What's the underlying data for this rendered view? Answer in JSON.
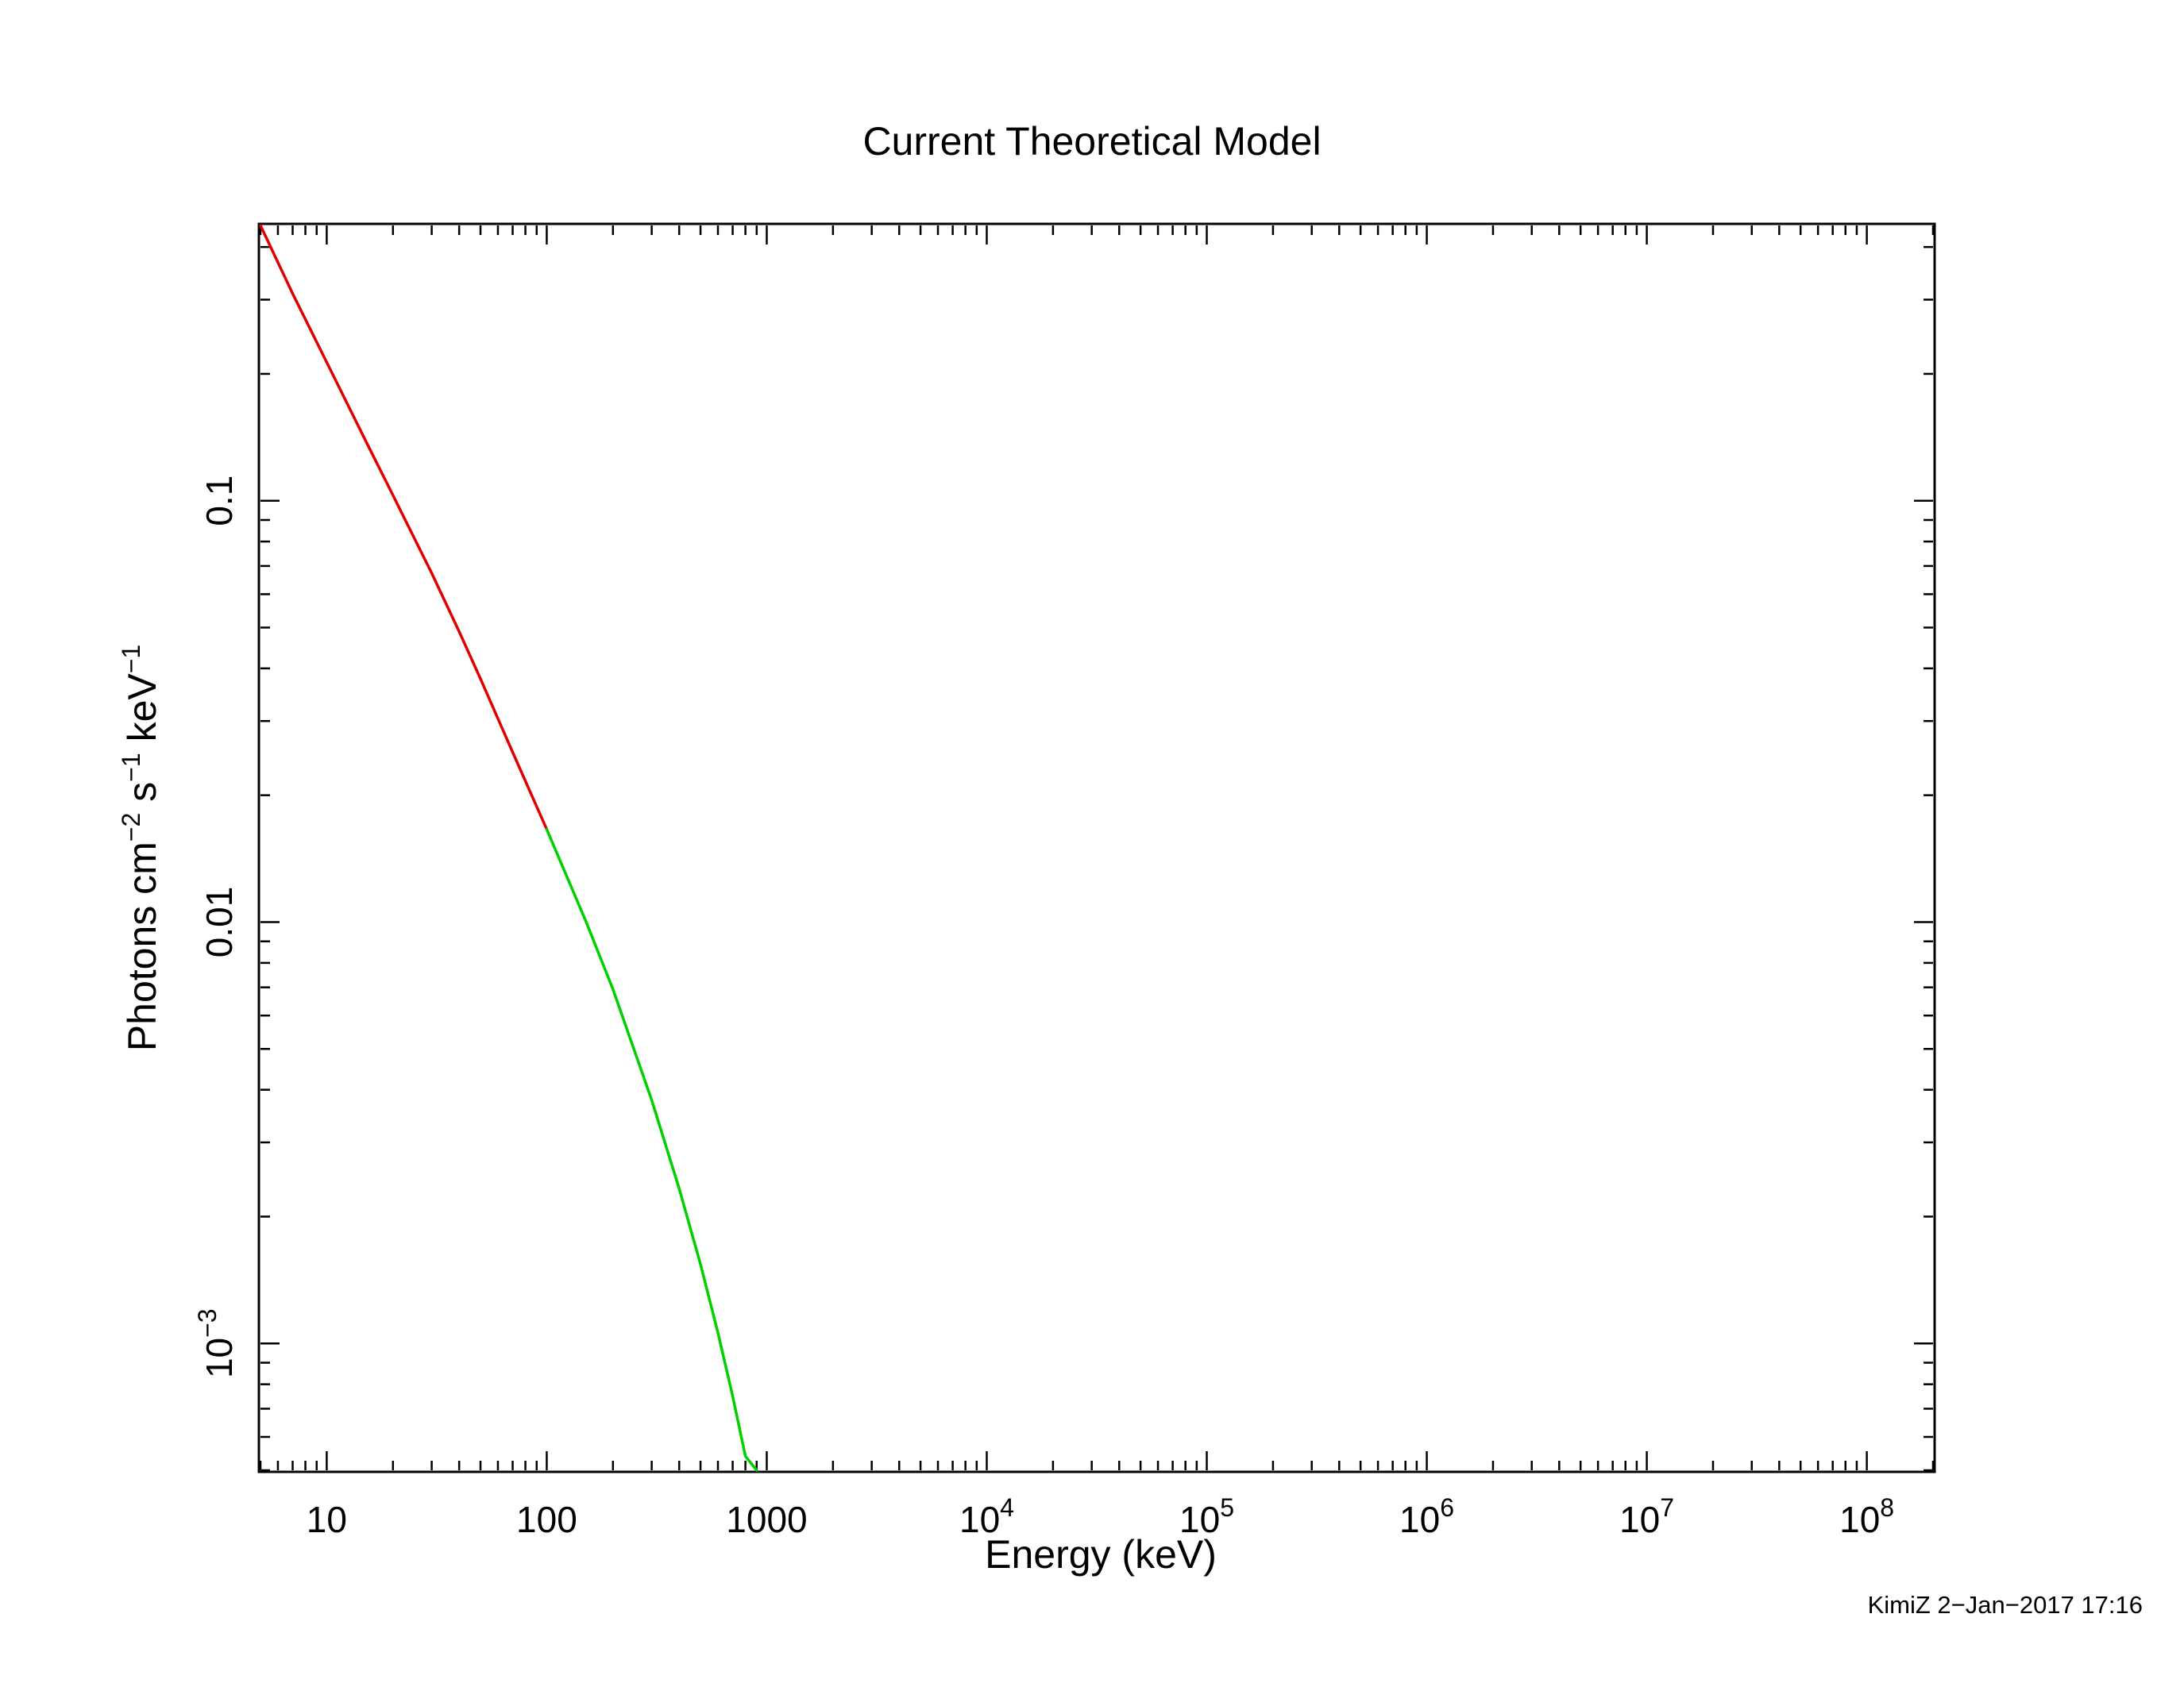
{
  "stamp": "KimiZ  2−Jan−2017 17:16",
  "chart_data": {
    "type": "line",
    "title": "Current Theoretical Model",
    "xlabel": "Energy (keV)",
    "ylabel": {
      "base": "Photons cm",
      "exp1": "−2",
      "mid1": " s",
      "exp2": "−1",
      "mid2": " keV",
      "exp3": "−1"
    },
    "xscale": "log",
    "yscale": "log",
    "xlim": [
      5,
      200000000
    ],
    "ylim": [
      0.0005,
      0.45
    ],
    "grid": false,
    "x_ticks": [
      {
        "value": 10,
        "base": "10",
        "exp": ""
      },
      {
        "value": 100,
        "base": "100",
        "exp": ""
      },
      {
        "value": 1000,
        "base": "1000",
        "exp": ""
      },
      {
        "value": 10000,
        "base": "10",
        "exp": "4"
      },
      {
        "value": 100000,
        "base": "10",
        "exp": "5"
      },
      {
        "value": 1000000,
        "base": "10",
        "exp": "6"
      },
      {
        "value": 10000000,
        "base": "10",
        "exp": "7"
      },
      {
        "value": 100000000,
        "base": "10",
        "exp": "8"
      }
    ],
    "y_ticks": [
      {
        "value": 0.1,
        "base": "0.1",
        "exp": ""
      },
      {
        "value": 0.01,
        "base": "0.01",
        "exp": ""
      },
      {
        "value": 0.001,
        "base": "10",
        "exp": "−3"
      }
    ],
    "series": [
      {
        "color": "#e00000",
        "x": [
          5,
          7,
          10,
          15,
          20,
          30,
          40,
          50,
          70,
          100
        ],
        "y": [
          0.45,
          0.31,
          0.213,
          0.139,
          0.103,
          0.0673,
          0.0489,
          0.0378,
          0.0253,
          0.0166
        ]
      },
      {
        "color": "#00d000",
        "x": [
          100,
          150,
          200,
          300,
          400,
          500,
          600,
          700,
          800,
          900
        ],
        "y": [
          0.0166,
          0.0101,
          0.00693,
          0.00378,
          0.00233,
          0.00154,
          0.00106,
          0.00075,
          0.00054,
          0.0005
        ]
      }
    ]
  }
}
